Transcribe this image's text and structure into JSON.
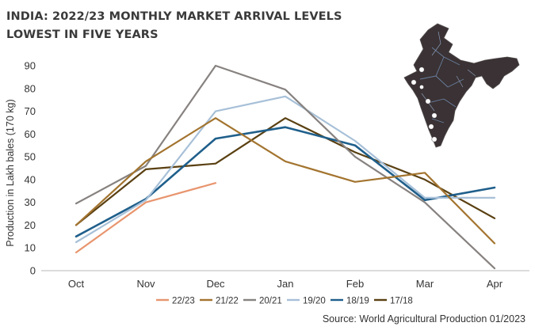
{
  "chart_data": {
    "type": "line",
    "title": [
      "INDIA: 2022/23 MONTHLY MARKET ARRIVAL LEVELS",
      "LOWEST IN FIVE YEARS"
    ],
    "xlabel": "",
    "ylabel": "Production in Lakh bales (170 kg)",
    "categories": [
      "Oct",
      "Nov",
      "Dec",
      "Jan",
      "Feb",
      "Mar",
      "Apr"
    ],
    "ylim": [
      0,
      90
    ],
    "yticks": [
      0,
      10,
      20,
      30,
      40,
      50,
      60,
      70,
      80,
      90
    ],
    "grid": false,
    "legend_position": "bottom",
    "source": "Source: World Agricultural Production 01/2023",
    "series": [
      {
        "name": "22/23",
        "color": "#e8956e",
        "values": [
          8,
          30,
          38.5,
          null,
          null,
          null,
          null
        ]
      },
      {
        "name": "21/22",
        "color": "#a3742f",
        "values": [
          20,
          48,
          67,
          48,
          39,
          43,
          12
        ]
      },
      {
        "name": "20/21",
        "color": "#878280",
        "values": [
          29.5,
          46,
          90,
          79.5,
          50,
          30,
          1
        ]
      },
      {
        "name": "19/20",
        "color": "#a7c0d8",
        "values": [
          12.5,
          31,
          70,
          76.5,
          57,
          32,
          32
        ]
      },
      {
        "name": "18/19",
        "color": "#1f5f8b",
        "values": [
          15,
          31.5,
          58,
          63,
          55,
          31,
          36.5
        ]
      },
      {
        "name": "17/18",
        "color": "#5a4012",
        "values": [
          20,
          44.5,
          47,
          67,
          52,
          40,
          23
        ]
      }
    ]
  },
  "map": {
    "label": "India map"
  }
}
